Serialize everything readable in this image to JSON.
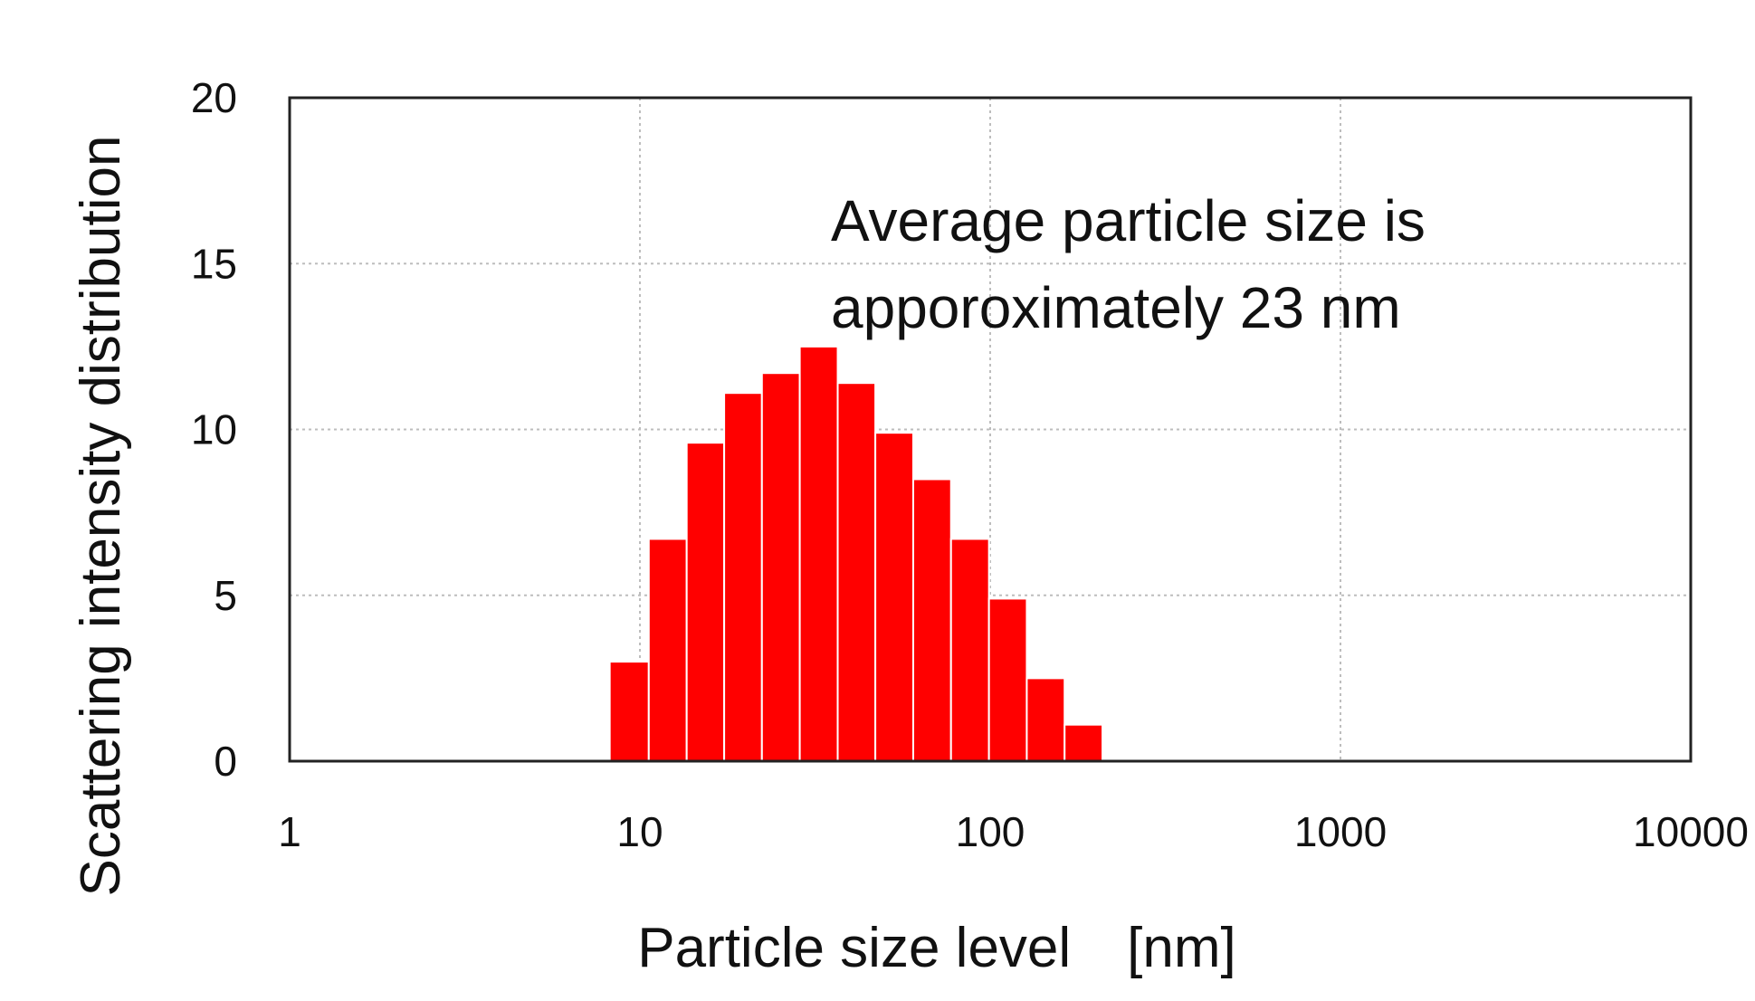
{
  "chart_data": {
    "type": "bar",
    "x_scale": "log",
    "xlim": [
      1,
      10000
    ],
    "ylim": [
      0,
      20
    ],
    "xticks": [
      1,
      10,
      100,
      1000,
      10000
    ],
    "xtick_labels": [
      "1",
      "10",
      "100",
      "1000",
      "10000"
    ],
    "yticks": [
      0,
      5,
      10,
      15,
      20
    ],
    "ytick_labels": [
      "0",
      "5",
      "10",
      "15",
      "20"
    ],
    "grid": true,
    "xlabel": "Particle size level　[nm]",
    "ylabel": "Scattering  intensity distribution",
    "annotation": [
      "Average particle size is",
      "apporoximately 23 nm"
    ],
    "bar_color": "#ff0000",
    "bar_edge_color": "#ffffff",
    "bins": [
      {
        "from": 8.2,
        "to": 10.6,
        "value": 3.0
      },
      {
        "from": 10.6,
        "to": 13.6,
        "value": 6.7
      },
      {
        "from": 13.6,
        "to": 17.4,
        "value": 9.6
      },
      {
        "from": 17.4,
        "to": 22.3,
        "value": 11.1
      },
      {
        "from": 22.3,
        "to": 28.6,
        "value": 11.7
      },
      {
        "from": 28.6,
        "to": 36.7,
        "value": 12.5
      },
      {
        "from": 36.7,
        "to": 47.0,
        "value": 11.4
      },
      {
        "from": 47.0,
        "to": 60.3,
        "value": 9.9
      },
      {
        "from": 60.3,
        "to": 77.3,
        "value": 8.5
      },
      {
        "from": 77.3,
        "to": 99.2,
        "value": 6.7
      },
      {
        "from": 99.2,
        "to": 127.2,
        "value": 4.9
      },
      {
        "from": 127.2,
        "to": 163.1,
        "value": 2.5
      },
      {
        "from": 163.1,
        "to": 209.2,
        "value": 1.1
      }
    ]
  }
}
